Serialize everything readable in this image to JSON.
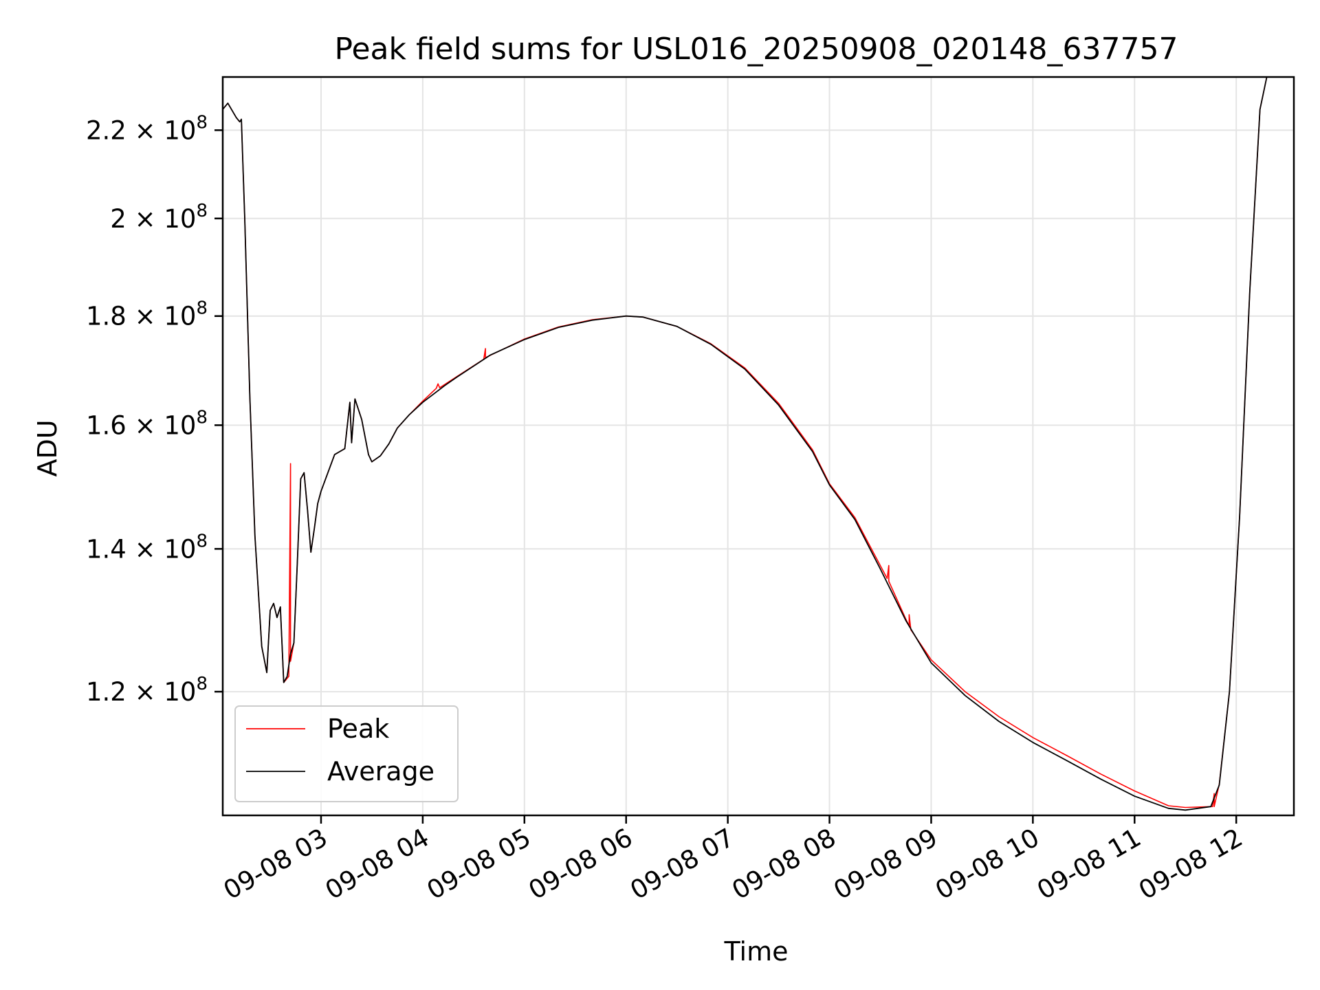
{
  "chart_data": {
    "type": "line",
    "title": "Peak field sums for USL016_20250908_020148_637757",
    "xlabel": "Time",
    "ylabel": "ADU",
    "x_range": [
      "2025-09-08 02:02",
      "2025-09-08 12:34"
    ],
    "y_range": [
      105000000,
      233000000
    ],
    "y_scale": "log",
    "grid": true,
    "legend_position": "lower-left",
    "x_ticks": [
      "09-08 03",
      "09-08 04",
      "09-08 05",
      "09-08 06",
      "09-08 07",
      "09-08 08",
      "09-08 09",
      "09-08 10",
      "09-08 11",
      "09-08 12"
    ],
    "x_tick_times": [
      "2025-09-08 03:00",
      "2025-09-08 04:00",
      "2025-09-08 05:00",
      "2025-09-08 06:00",
      "2025-09-08 07:00",
      "2025-09-08 08:00",
      "2025-09-08 09:00",
      "2025-09-08 10:00",
      "2025-09-08 11:00",
      "2025-09-08 12:00"
    ],
    "y_ticks": [
      {
        "value": 120000000,
        "mantissa": "1.2",
        "exponent": "8"
      },
      {
        "value": 140000000,
        "mantissa": "1.4",
        "exponent": "8"
      },
      {
        "value": 160000000,
        "mantissa": "1.6",
        "exponent": "8"
      },
      {
        "value": 180000000,
        "mantissa": "1.8",
        "exponent": "8"
      },
      {
        "value": 200000000,
        "mantissa": "2",
        "exponent": "8"
      },
      {
        "value": 220000000,
        "mantissa": "2.2",
        "exponent": "8"
      }
    ],
    "series": [
      {
        "name": "Average",
        "color": "#000000",
        "points": [
          [
            "2025-09-08 02:02",
            225000000
          ],
          [
            "2025-09-08 02:05",
            226500000
          ],
          [
            "2025-09-08 02:10",
            223000000
          ],
          [
            "2025-09-08 02:12",
            222000000
          ],
          [
            "2025-09-08 02:13",
            222600000
          ],
          [
            "2025-09-08 02:15",
            200000000
          ],
          [
            "2025-09-08 02:18",
            165000000
          ],
          [
            "2025-09-08 02:21",
            142000000
          ],
          [
            "2025-09-08 02:25",
            126000000
          ],
          [
            "2025-09-08 02:28",
            122500000
          ],
          [
            "2025-09-08 02:30",
            131000000
          ],
          [
            "2025-09-08 02:32",
            132000000
          ],
          [
            "2025-09-08 02:34",
            130000000
          ],
          [
            "2025-09-08 02:36",
            131500000
          ],
          [
            "2025-09-08 02:38",
            121200000
          ],
          [
            "2025-09-08 02:40",
            122000000
          ],
          [
            "2025-09-08 02:42",
            125000000
          ],
          [
            "2025-09-08 02:44",
            126500000
          ],
          [
            "2025-09-08 02:46",
            138000000
          ],
          [
            "2025-09-08 02:48",
            151000000
          ],
          [
            "2025-09-08 02:50",
            152000000
          ],
          [
            "2025-09-08 02:52",
            146000000
          ],
          [
            "2025-09-08 02:54",
            139500000
          ],
          [
            "2025-09-08 02:56",
            143000000
          ],
          [
            "2025-09-08 02:58",
            147000000
          ],
          [
            "2025-09-08 03:00",
            149000000
          ],
          [
            "2025-09-08 03:08",
            155000000
          ],
          [
            "2025-09-08 03:14",
            156000000
          ],
          [
            "2025-09-08 03:17",
            164000000
          ],
          [
            "2025-09-08 03:18",
            157000000
          ],
          [
            "2025-09-08 03:20",
            164600000
          ],
          [
            "2025-09-08 03:24",
            161000000
          ],
          [
            "2025-09-08 03:28",
            155000000
          ],
          [
            "2025-09-08 03:30",
            153800000
          ],
          [
            "2025-09-08 03:35",
            154800000
          ],
          [
            "2025-09-08 03:40",
            156800000
          ],
          [
            "2025-09-08 03:45",
            159500000
          ],
          [
            "2025-09-08 03:52",
            161800000
          ],
          [
            "2025-09-08 04:00",
            164000000
          ],
          [
            "2025-09-08 04:13",
            167000000
          ],
          [
            "2025-09-08 04:20",
            168500000
          ],
          [
            "2025-09-08 04:40",
            172600000
          ],
          [
            "2025-09-08 05:00",
            175500000
          ],
          [
            "2025-09-08 05:20",
            177800000
          ],
          [
            "2025-09-08 05:40",
            179200000
          ],
          [
            "2025-09-08 06:00",
            180000000
          ],
          [
            "2025-09-08 06:10",
            179800000
          ],
          [
            "2025-09-08 06:30",
            178000000
          ],
          [
            "2025-09-08 06:50",
            174600000
          ],
          [
            "2025-09-08 07:10",
            170000000
          ],
          [
            "2025-09-08 07:30",
            163500000
          ],
          [
            "2025-09-08 07:50",
            155500000
          ],
          [
            "2025-09-08 08:00",
            150000000
          ],
          [
            "2025-09-08 08:15",
            144500000
          ],
          [
            "2025-09-08 08:30",
            137000000
          ],
          [
            "2025-09-08 08:45",
            129600000
          ],
          [
            "2025-09-08 09:00",
            123800000
          ],
          [
            "2025-09-08 09:20",
            119500000
          ],
          [
            "2025-09-08 09:40",
            116200000
          ],
          [
            "2025-09-08 10:00",
            113600000
          ],
          [
            "2025-09-08 10:20",
            111400000
          ],
          [
            "2025-09-08 10:40",
            109200000
          ],
          [
            "2025-09-08 11:00",
            107200000
          ],
          [
            "2025-09-08 11:20",
            105800000
          ],
          [
            "2025-09-08 11:30",
            105600000
          ],
          [
            "2025-09-08 11:45",
            106000000
          ],
          [
            "2025-09-08 11:50",
            108500000
          ],
          [
            "2025-09-08 11:56",
            120000000
          ],
          [
            "2025-09-08 12:02",
            145000000
          ],
          [
            "2025-09-08 12:08",
            185000000
          ],
          [
            "2025-09-08 12:14",
            225000000
          ],
          [
            "2025-09-08 12:18",
            233000000
          ]
        ]
      },
      {
        "name": "Peak",
        "color": "#ff0000",
        "points": [
          [
            "2025-09-08 02:02",
            225000000
          ],
          [
            "2025-09-08 02:05",
            226500000
          ],
          [
            "2025-09-08 02:10",
            223000000
          ],
          [
            "2025-09-08 02:12",
            222000000
          ],
          [
            "2025-09-08 02:13",
            222600000
          ],
          [
            "2025-09-08 02:15",
            200000000
          ],
          [
            "2025-09-08 02:18",
            165000000
          ],
          [
            "2025-09-08 02:21",
            142000000
          ],
          [
            "2025-09-08 02:25",
            126000000
          ],
          [
            "2025-09-08 02:28",
            122500000
          ],
          [
            "2025-09-08 02:30",
            131000000
          ],
          [
            "2025-09-08 02:32",
            132000000
          ],
          [
            "2025-09-08 02:34",
            130000000
          ],
          [
            "2025-09-08 02:36",
            131500000
          ],
          [
            "2025-09-08 02:38",
            121200000
          ],
          [
            "2025-09-08 02:41",
            122000000
          ],
          [
            "2025-09-08 02:42",
            153500000
          ],
          [
            "2025-09-08 02:42",
            124000000
          ],
          [
            "2025-09-08 02:44",
            126500000
          ],
          [
            "2025-09-08 02:46",
            138000000
          ],
          [
            "2025-09-08 02:48",
            151000000
          ],
          [
            "2025-09-08 02:50",
            152000000
          ],
          [
            "2025-09-08 02:52",
            146000000
          ],
          [
            "2025-09-08 02:54",
            139500000
          ],
          [
            "2025-09-08 02:56",
            143000000
          ],
          [
            "2025-09-08 02:58",
            147000000
          ],
          [
            "2025-09-08 03:00",
            149000000
          ],
          [
            "2025-09-08 03:08",
            155000000
          ],
          [
            "2025-09-08 03:14",
            156000000
          ],
          [
            "2025-09-08 03:17",
            164000000
          ],
          [
            "2025-09-08 03:18",
            157000000
          ],
          [
            "2025-09-08 03:20",
            164600000
          ],
          [
            "2025-09-08 03:24",
            161000000
          ],
          [
            "2025-09-08 03:28",
            155000000
          ],
          [
            "2025-09-08 03:30",
            153800000
          ],
          [
            "2025-09-08 03:35",
            154800000
          ],
          [
            "2025-09-08 03:40",
            156800000
          ],
          [
            "2025-09-08 03:45",
            159500000
          ],
          [
            "2025-09-08 03:52",
            161800000
          ],
          [
            "2025-09-08 04:00",
            164200000
          ],
          [
            "2025-09-08 04:08",
            166500000
          ],
          [
            "2025-09-08 04:09",
            167300000
          ],
          [
            "2025-09-08 04:10",
            166600000
          ],
          [
            "2025-09-08 04:20",
            168600000
          ],
          [
            "2025-09-08 04:36",
            171800000
          ],
          [
            "2025-09-08 04:37",
            173800000
          ],
          [
            "2025-09-08 04:37",
            172100000
          ],
          [
            "2025-09-08 05:00",
            175600000
          ],
          [
            "2025-09-08 05:20",
            177900000
          ],
          [
            "2025-09-08 05:40",
            179300000
          ],
          [
            "2025-09-08 06:00",
            180000000
          ],
          [
            "2025-09-08 06:10",
            179800000
          ],
          [
            "2025-09-08 06:30",
            178000000
          ],
          [
            "2025-09-08 06:50",
            174700000
          ],
          [
            "2025-09-08 07:10",
            170200000
          ],
          [
            "2025-09-08 07:30",
            163800000
          ],
          [
            "2025-09-08 07:50",
            155800000
          ],
          [
            "2025-09-08 08:00",
            150200000
          ],
          [
            "2025-09-08 08:15",
            144800000
          ],
          [
            "2025-09-08 08:34",
            135600000
          ],
          [
            "2025-09-08 08:35",
            137500000
          ],
          [
            "2025-09-08 08:35",
            135200000
          ],
          [
            "2025-09-08 08:45",
            129800000
          ],
          [
            "2025-09-08 08:47",
            128800000
          ],
          [
            "2025-09-08 08:47",
            130400000
          ],
          [
            "2025-09-08 08:48",
            128300000
          ],
          [
            "2025-09-08 09:00",
            124200000
          ],
          [
            "2025-09-08 09:20",
            120000000
          ],
          [
            "2025-09-08 09:40",
            116800000
          ],
          [
            "2025-09-08 10:00",
            114200000
          ],
          [
            "2025-09-08 10:20",
            112000000
          ],
          [
            "2025-09-08 10:40",
            109800000
          ],
          [
            "2025-09-08 11:00",
            107800000
          ],
          [
            "2025-09-08 11:20",
            106100000
          ],
          [
            "2025-09-08 11:30",
            105900000
          ],
          [
            "2025-09-08 11:46",
            106000000
          ],
          [
            "2025-09-08 11:47",
            107500000
          ],
          [
            "2025-09-08 11:47",
            106000000
          ],
          [
            "2025-09-08 11:50",
            108600000
          ],
          [
            "2025-09-08 11:56",
            120000000
          ],
          [
            "2025-09-08 12:02",
            145000000
          ],
          [
            "2025-09-08 12:08",
            185000000
          ],
          [
            "2025-09-08 12:14",
            225000000
          ],
          [
            "2025-09-08 12:18",
            233000000
          ]
        ]
      }
    ],
    "legend": [
      {
        "label": "Peak",
        "color": "#ff0000"
      },
      {
        "label": "Average",
        "color": "#000000"
      }
    ]
  }
}
